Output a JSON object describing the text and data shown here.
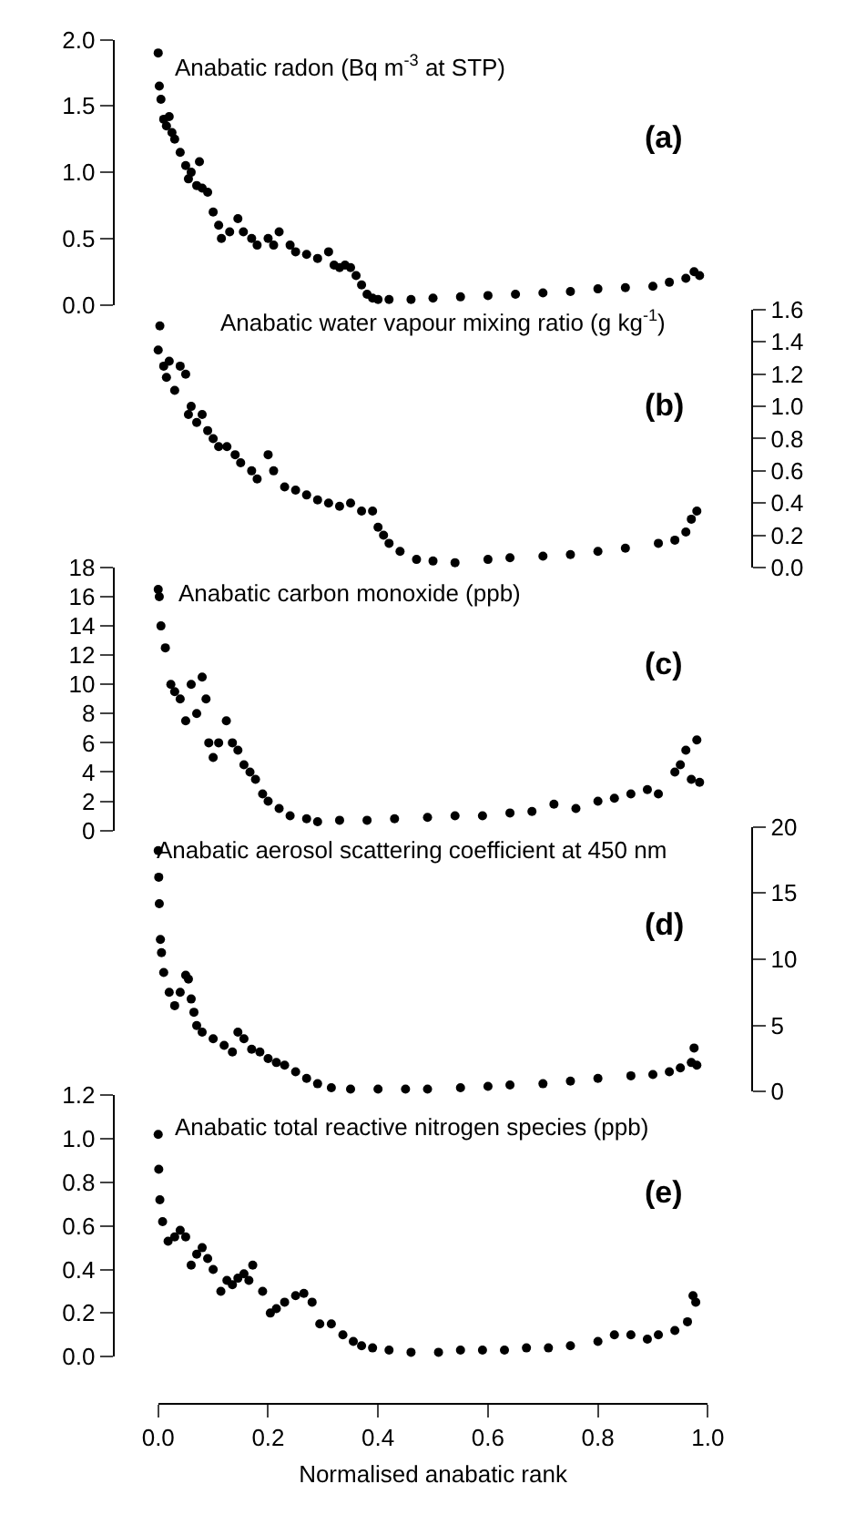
{
  "chart_data": [
    {
      "type": "scatter",
      "title": "Anabatic radon (Bq m$^{-3}$ at STP)",
      "annotations": [
        "(a)"
      ],
      "marker": "circle",
      "tick_labels": "y",
      "xlim": [
        0,
        1
      ],
      "ylim": [
        0,
        2
      ],
      "yticks": [
        {
          "value": 0,
          "label": "0.0"
        },
        0.5,
        {
          "value": 1,
          "label": "1.0"
        },
        1.5,
        {
          "value": 2,
          "label": "2.0"
        }
      ],
      "series": [
        {
          "color": "#000000",
          "x": [
            0.0,
            0.002,
            0.005,
            0.01,
            0.015,
            0.02,
            0.025,
            0.03,
            0.04,
            0.05,
            0.055,
            0.06,
            0.07,
            0.075,
            0.08,
            0.09,
            0.1,
            0.11,
            0.115,
            0.13,
            0.145,
            0.155,
            0.17,
            0.18,
            0.2,
            0.21,
            0.22,
            0.24,
            0.25,
            0.27,
            0.29,
            0.31,
            0.32,
            0.33,
            0.34,
            0.35,
            0.36,
            0.37,
            0.38,
            0.39,
            0.4,
            0.42,
            0.46,
            0.5,
            0.55,
            0.6,
            0.65,
            0.7,
            0.75,
            0.8,
            0.85,
            0.9,
            0.93,
            0.96,
            0.975,
            0.985
          ],
          "values": [
            1.9,
            1.65,
            1.55,
            1.4,
            1.35,
            1.42,
            1.3,
            1.25,
            1.15,
            1.05,
            0.95,
            1.0,
            0.9,
            1.08,
            0.88,
            0.85,
            0.7,
            0.6,
            0.5,
            0.55,
            0.65,
            0.55,
            0.5,
            0.45,
            0.5,
            0.45,
            0.55,
            0.45,
            0.4,
            0.38,
            0.35,
            0.4,
            0.3,
            0.28,
            0.3,
            0.28,
            0.22,
            0.15,
            0.08,
            0.05,
            0.04,
            0.04,
            0.04,
            0.05,
            0.06,
            0.07,
            0.08,
            0.09,
            0.1,
            0.12,
            0.13,
            0.14,
            0.17,
            0.2,
            0.25,
            0.22
          ]
        }
      ]
    },
    {
      "type": "scatter",
      "title": "Anabatic water vapour mixing ratio (g kg$^{-1}$)",
      "annotations": [
        "(b)"
      ],
      "marker": "circle",
      "tick_labels": "y",
      "xlim": [
        0,
        1
      ],
      "y2lim": [
        0,
        1.6
      ],
      "y2ticks": [
        {
          "value": 0,
          "label": "0.0"
        },
        0.2,
        0.4,
        0.6,
        0.8,
        {
          "value": 1,
          "label": "1.0"
        },
        1.2,
        1.4,
        1.6
      ],
      "series": [
        {
          "color": "#000000",
          "axis": "y2",
          "x": [
            0.0,
            0.003,
            0.015,
            0.01,
            0.02,
            0.03,
            0.04,
            0.05,
            0.055,
            0.06,
            0.07,
            0.08,
            0.09,
            0.1,
            0.11,
            0.125,
            0.14,
            0.15,
            0.17,
            0.18,
            0.2,
            0.21,
            0.23,
            0.25,
            0.27,
            0.29,
            0.31,
            0.33,
            0.35,
            0.37,
            0.39,
            0.4,
            0.41,
            0.42,
            0.44,
            0.47,
            0.5,
            0.54,
            0.6,
            0.64,
            0.7,
            0.75,
            0.8,
            0.85,
            0.91,
            0.94,
            0.96,
            0.97,
            0.98
          ],
          "values": [
            1.35,
            1.5,
            1.18,
            1.25,
            1.28,
            1.1,
            1.25,
            1.2,
            0.95,
            1.0,
            0.9,
            0.95,
            0.85,
            0.8,
            0.75,
            0.75,
            0.7,
            0.65,
            0.6,
            0.55,
            0.7,
            0.6,
            0.5,
            0.48,
            0.45,
            0.42,
            0.4,
            0.38,
            0.4,
            0.35,
            0.35,
            0.25,
            0.2,
            0.15,
            0.1,
            0.05,
            0.04,
            0.03,
            0.05,
            0.06,
            0.07,
            0.08,
            0.1,
            0.12,
            0.15,
            0.17,
            0.22,
            0.3,
            0.35
          ]
        }
      ]
    },
    {
      "type": "scatter",
      "title": "Anabatic carbon monoxide (ppb)",
      "annotations": [
        "(c)"
      ],
      "marker": "circle",
      "tick_labels": "y",
      "xlim": [
        0,
        1
      ],
      "ylim": [
        0,
        18
      ],
      "yticks": [
        0,
        2,
        4,
        6,
        8,
        10,
        12,
        14,
        16,
        18
      ],
      "series": [
        {
          "color": "#000000",
          "x": [
            0.0,
            0.002,
            0.005,
            0.013,
            0.023,
            0.03,
            0.04,
            0.05,
            0.06,
            0.07,
            0.08,
            0.087,
            0.092,
            0.1,
            0.11,
            0.124,
            0.135,
            0.145,
            0.156,
            0.167,
            0.177,
            0.19,
            0.2,
            0.22,
            0.24,
            0.27,
            0.29,
            0.33,
            0.38,
            0.43,
            0.49,
            0.54,
            0.59,
            0.64,
            0.68,
            0.72,
            0.76,
            0.8,
            0.83,
            0.86,
            0.89,
            0.91,
            0.94,
            0.95,
            0.96,
            0.97,
            0.98,
            0.985
          ],
          "values": [
            16.5,
            16,
            14,
            12.5,
            10,
            9.5,
            9,
            7.5,
            10,
            8,
            10.5,
            9,
            6,
            5,
            6,
            7.5,
            6,
            5.5,
            4.5,
            4,
            3.5,
            2.5,
            2,
            1.5,
            1,
            0.8,
            0.6,
            0.7,
            0.7,
            0.8,
            0.9,
            1.0,
            1.0,
            1.2,
            1.3,
            1.8,
            1.5,
            2,
            2.2,
            2.5,
            2.8,
            2.5,
            4,
            4.5,
            5.5,
            3.5,
            6.2,
            3.3
          ]
        }
      ]
    },
    {
      "type": "scatter",
      "title": "Anabatic aerosol scattering coefficient at 450 nm",
      "annotations": [
        "(d)"
      ],
      "marker": "circle",
      "tick_labels": "y",
      "xlim": [
        0,
        1
      ],
      "y2lim": [
        0,
        20
      ],
      "y2ticks": [
        0,
        5,
        10,
        15,
        20
      ],
      "series": [
        {
          "color": "#000000",
          "axis": "y2",
          "x": [
            0.0,
            0.001,
            0.002,
            0.004,
            0.006,
            0.01,
            0.02,
            0.03,
            0.04,
            0.05,
            0.055,
            0.06,
            0.065,
            0.07,
            0.08,
            0.1,
            0.12,
            0.135,
            0.145,
            0.156,
            0.17,
            0.185,
            0.2,
            0.215,
            0.23,
            0.25,
            0.27,
            0.29,
            0.315,
            0.35,
            0.4,
            0.45,
            0.49,
            0.55,
            0.6,
            0.64,
            0.7,
            0.75,
            0.8,
            0.86,
            0.9,
            0.93,
            0.95,
            0.97,
            0.975,
            0.98
          ],
          "values": [
            18.2,
            16.2,
            14.2,
            11.5,
            10.5,
            9,
            7.5,
            6.5,
            7.5,
            8.8,
            8.5,
            7,
            6,
            5,
            4.5,
            4,
            3.5,
            3,
            4.5,
            4,
            3.2,
            3,
            2.5,
            2.2,
            2,
            1.5,
            1,
            0.6,
            0.3,
            0.2,
            0.2,
            0.2,
            0.2,
            0.3,
            0.4,
            0.5,
            0.6,
            0.8,
            1.0,
            1.2,
            1.3,
            1.5,
            1.8,
            2.2,
            3.3,
            2.0
          ]
        }
      ]
    },
    {
      "type": "scatter",
      "title": "Anabatic total reactive nitrogen species (ppb)",
      "annotations": [
        "(e)"
      ],
      "marker": "circle",
      "xlabel": "Normalised anabatic rank",
      "xlim": [
        0,
        1
      ],
      "xticks": [
        {
          "value": 0,
          "label": "0.0"
        },
        0.2,
        0.4,
        0.6,
        0.8,
        {
          "value": 1,
          "label": "1.0"
        }
      ],
      "ylim": [
        0,
        1.2
      ],
      "yticks": [
        {
          "value": 0,
          "label": "0.0"
        },
        0.2,
        0.4,
        0.6,
        0.8,
        {
          "value": 1,
          "label": "1.0"
        },
        1.2
      ],
      "series": [
        {
          "color": "#000000",
          "x": [
            0.0,
            0.001,
            0.003,
            0.008,
            0.018,
            0.03,
            0.04,
            0.05,
            0.06,
            0.07,
            0.08,
            0.09,
            0.1,
            0.114,
            0.125,
            0.135,
            0.145,
            0.156,
            0.165,
            0.172,
            0.19,
            0.204,
            0.215,
            0.23,
            0.25,
            0.265,
            0.28,
            0.294,
            0.315,
            0.336,
            0.355,
            0.37,
            0.39,
            0.42,
            0.46,
            0.51,
            0.55,
            0.59,
            0.63,
            0.67,
            0.71,
            0.75,
            0.8,
            0.83,
            0.86,
            0.89,
            0.91,
            0.94,
            0.963,
            0.973,
            0.978
          ],
          "values": [
            1.02,
            0.86,
            0.72,
            0.62,
            0.53,
            0.55,
            0.58,
            0.55,
            0.42,
            0.47,
            0.5,
            0.45,
            0.4,
            0.3,
            0.35,
            0.33,
            0.36,
            0.38,
            0.35,
            0.42,
            0.3,
            0.2,
            0.22,
            0.25,
            0.28,
            0.29,
            0.25,
            0.15,
            0.15,
            0.1,
            0.07,
            0.05,
            0.04,
            0.03,
            0.02,
            0.02,
            0.03,
            0.03,
            0.03,
            0.04,
            0.04,
            0.05,
            0.07,
            0.1,
            0.1,
            0.08,
            0.1,
            0.12,
            0.16,
            0.28,
            0.25
          ]
        }
      ]
    }
  ]
}
